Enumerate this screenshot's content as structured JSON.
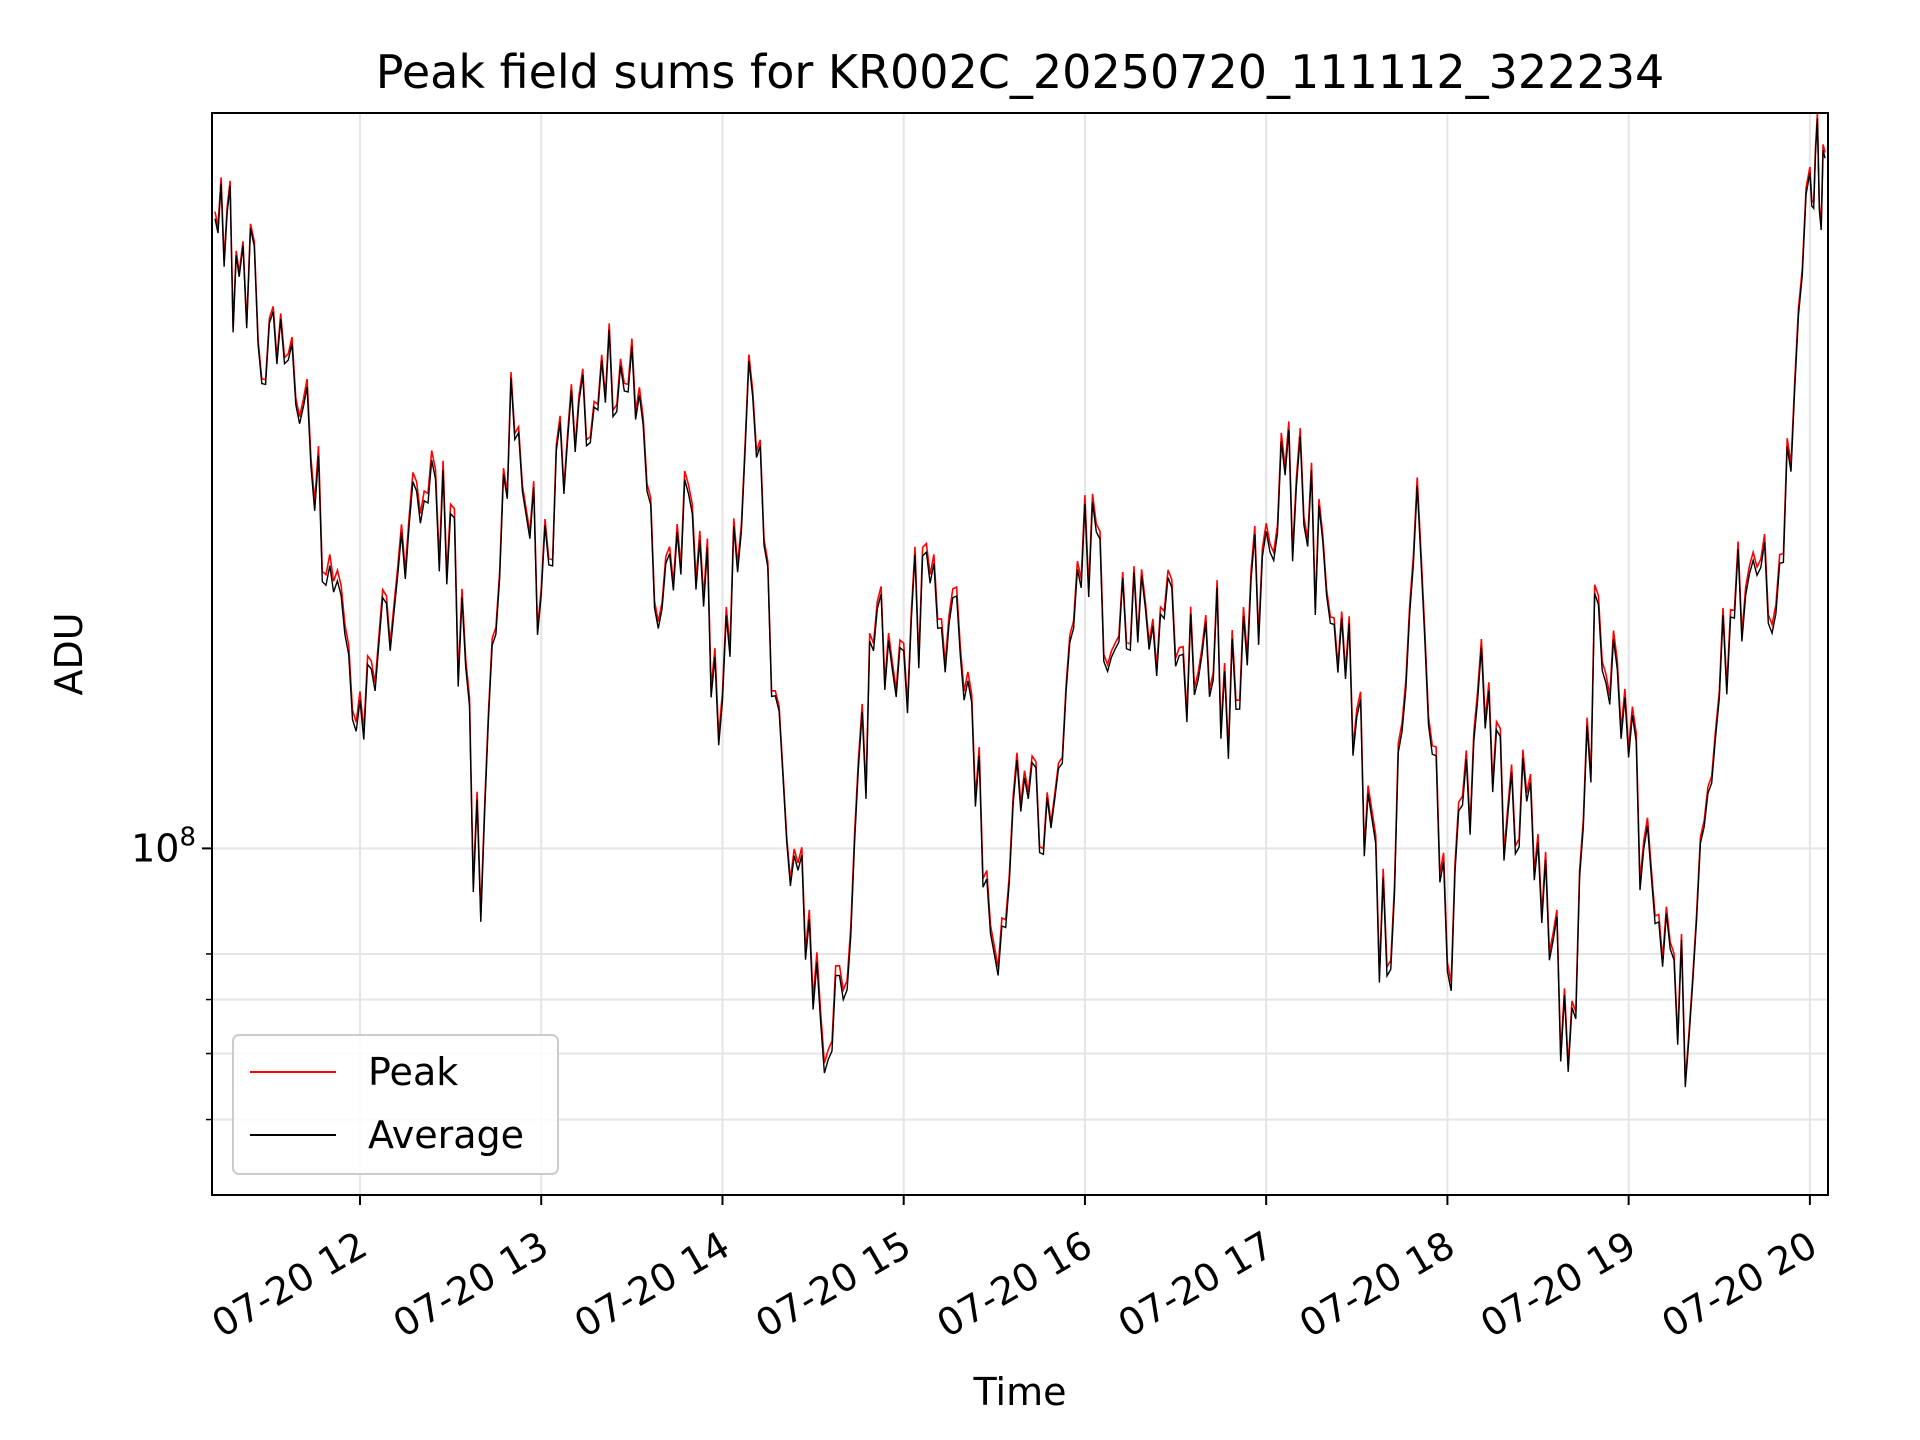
{
  "chart_data": {
    "type": "line",
    "title": "Peak field sums for KR002C_20250720_111112_322234",
    "xlabel": "Time",
    "ylabel": "ADU",
    "y_scale": "log",
    "ylim": [
      31000000,
      1200000000
    ],
    "xlim": [
      "2025-07-20 11:11",
      "2025-07-20 20:06"
    ],
    "x_ticks": [
      "07-20 12",
      "07-20 13",
      "07-20 14",
      "07-20 15",
      "07-20 16",
      "07-20 17",
      "07-20 18",
      "07-20 19",
      "07-20 20"
    ],
    "y_major_tick_label": {
      "base": "10",
      "exponent": "8"
    },
    "y_major_tick_value": 100000000,
    "y_minor_tick_values": [
      40000000,
      50000000,
      60000000,
      70000000
    ],
    "grid": true,
    "legend_position": "lower-left",
    "series": [
      {
        "name": "Peak",
        "color": "#ff0000"
      },
      {
        "name": "Average",
        "color": "#000000"
      }
    ],
    "x": [
      "11:12",
      "11:20",
      "11:30",
      "11:40",
      "11:50",
      "12:00",
      "12:10",
      "12:20",
      "12:30",
      "12:40",
      "12:50",
      "13:00",
      "13:10",
      "13:20",
      "13:30",
      "13:40",
      "13:50",
      "14:00",
      "14:10",
      "14:20",
      "14:30",
      "14:40",
      "14:50",
      "15:00",
      "15:10",
      "15:20",
      "15:30",
      "15:40",
      "15:50",
      "16:00",
      "16:10",
      "16:20",
      "16:30",
      "16:40",
      "16:50",
      "17:00",
      "17:10",
      "17:20",
      "17:30",
      "17:40",
      "17:50",
      "18:00",
      "18:10",
      "18:20",
      "18:30",
      "18:40",
      "18:50",
      "19:00",
      "19:10",
      "19:20",
      "19:30",
      "19:40",
      "19:50",
      "20:00",
      "20:05"
    ],
    "peak_values": [
      860,
      700,
      600,
      430,
      270,
      170,
      200,
      310,
      320,
      80,
      500,
      240,
      480,
      530,
      560,
      230,
      320,
      170,
      470,
      130,
      60,
      62,
      200,
      200,
      270,
      170,
      72,
      130,
      120,
      330,
      200,
      230,
      190,
      220,
      165,
      300,
      350,
      240,
      160,
      67,
      350,
      68,
      170,
      115,
      105,
      48,
      235,
      140,
      80,
      54,
      170,
      260,
      270,
      1000,
      1050
    ],
    "average_values": [
      840,
      690,
      590,
      420,
      260,
      165,
      195,
      300,
      310,
      78,
      490,
      235,
      470,
      520,
      545,
      225,
      310,
      165,
      460,
      128,
      58,
      60,
      195,
      195,
      262,
      165,
      70,
      127,
      118,
      320,
      196,
      225,
      185,
      215,
      160,
      292,
      340,
      235,
      156,
      65,
      340,
      66,
      165,
      112,
      102,
      47,
      228,
      136,
      78,
      53,
      166,
      253,
      262,
      980,
      1030
    ],
    "values_unit": "millions of ADU"
  }
}
